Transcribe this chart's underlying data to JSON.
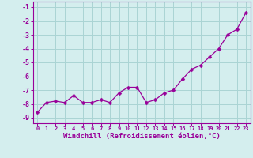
{
  "x": [
    0,
    1,
    2,
    3,
    4,
    5,
    6,
    7,
    8,
    9,
    10,
    11,
    12,
    13,
    14,
    15,
    16,
    17,
    18,
    19,
    20,
    21,
    22,
    23
  ],
  "y": [
    -8.6,
    -7.9,
    -7.8,
    -7.9,
    -7.4,
    -7.9,
    -7.9,
    -7.7,
    -7.9,
    -7.2,
    -6.8,
    -6.8,
    -7.9,
    -7.7,
    -7.2,
    -7.0,
    -6.2,
    -5.5,
    -5.2,
    -4.6,
    -4.0,
    -3.0,
    -2.6,
    -1.4
  ],
  "xlim": [
    -0.5,
    23.5
  ],
  "ylim": [
    -9.4,
    -0.6
  ],
  "yticks": [
    -9,
    -8,
    -7,
    -6,
    -5,
    -4,
    -3,
    -2,
    -1
  ],
  "xticks": [
    0,
    1,
    2,
    3,
    4,
    5,
    6,
    7,
    8,
    9,
    10,
    11,
    12,
    13,
    14,
    15,
    16,
    17,
    18,
    19,
    20,
    21,
    22,
    23
  ],
  "xlabel": "Windchill (Refroidissement éolien,°C)",
  "line_color": "#990099",
  "marker": "D",
  "marker_size": 2.5,
  "bg_color": "#d4eeee",
  "grid_color": "#aad4d4",
  "xlabel_fontsize": 6.5,
  "tick_fontsize": 6.0,
  "xtick_fontsize": 5.0
}
